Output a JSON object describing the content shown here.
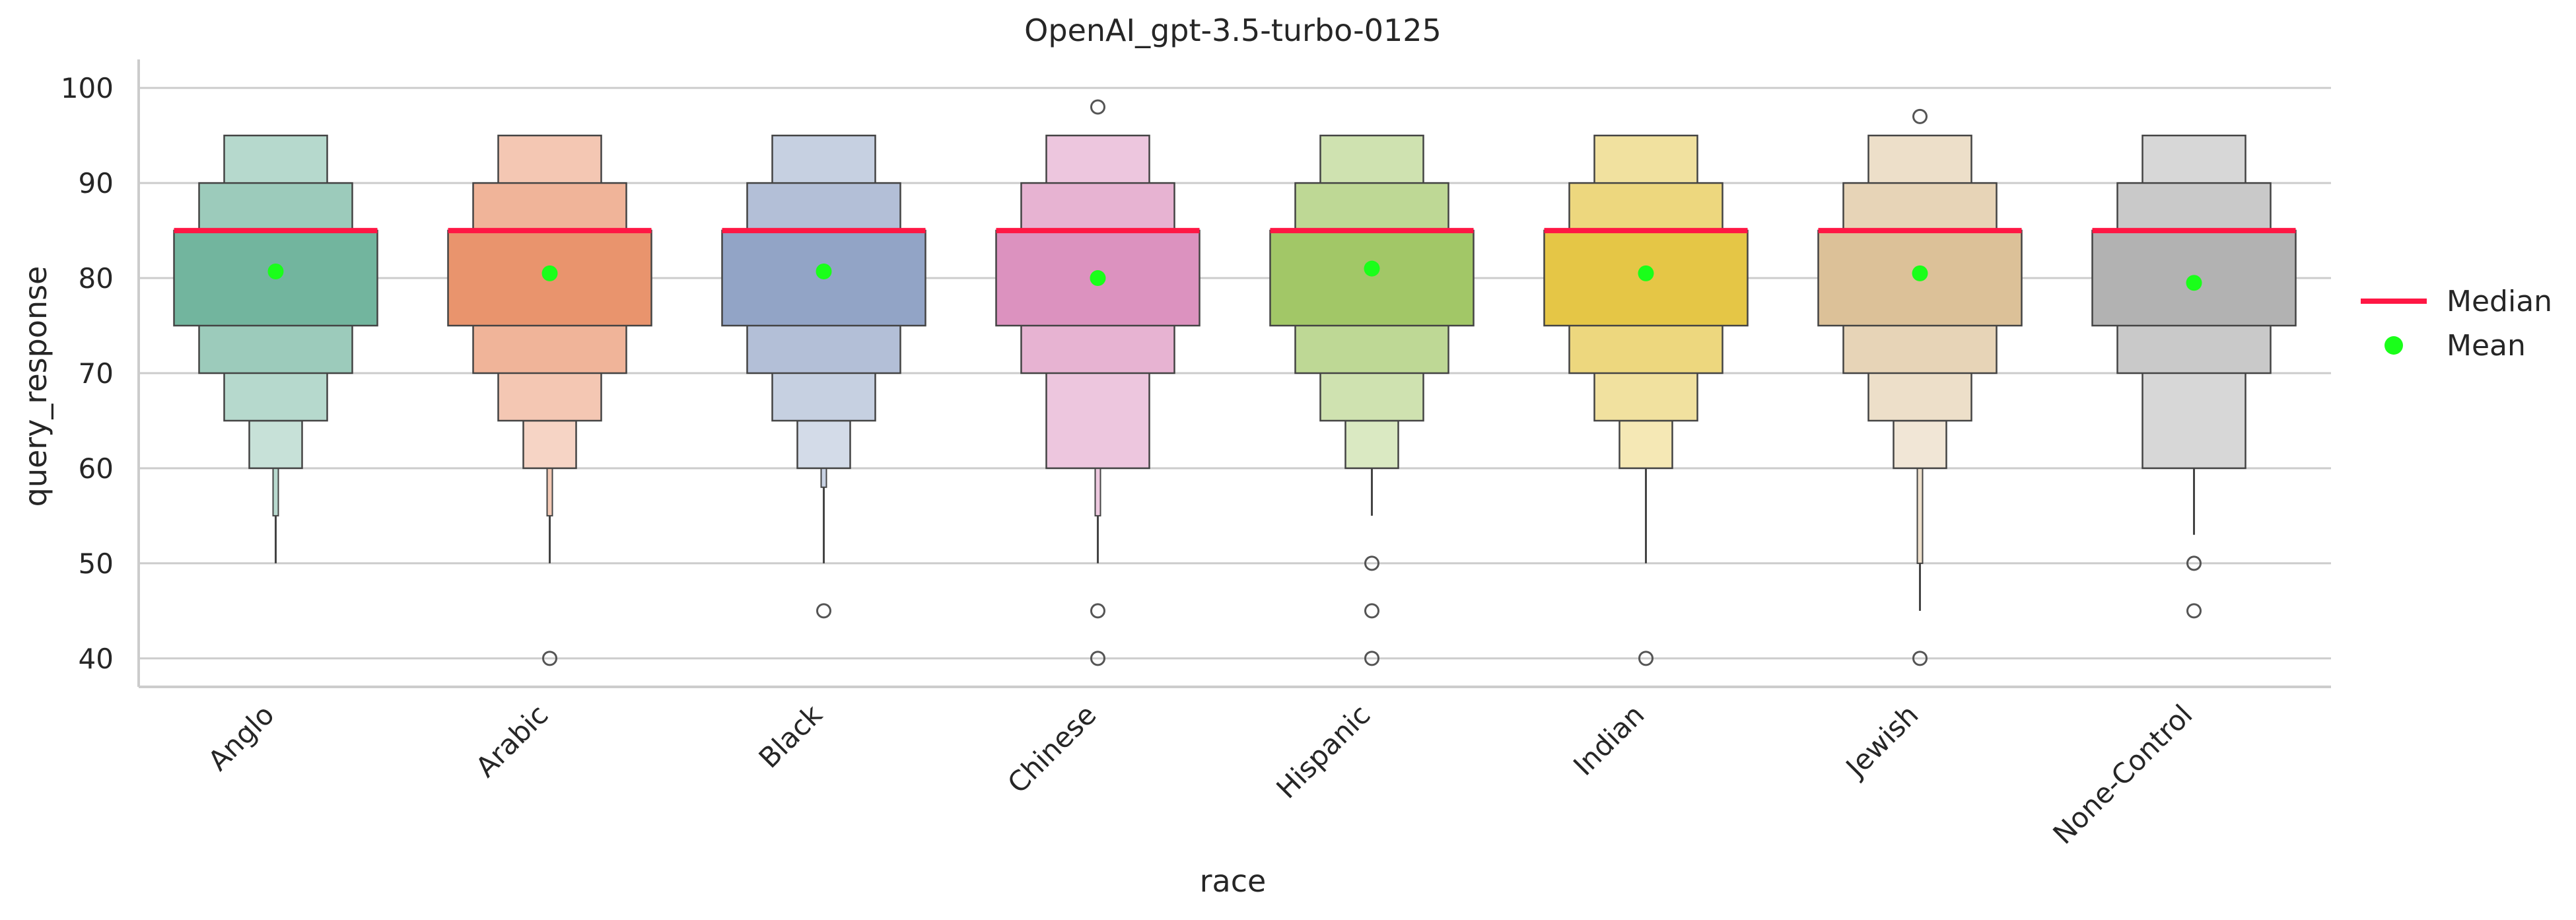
{
  "chart_data": {
    "type": "boxen",
    "title": "OpenAI_gpt-3.5-turbo-0125",
    "xlabel": "race",
    "ylabel": "query_response",
    "ylim": [
      37,
      103
    ],
    "yticks": [
      40,
      50,
      60,
      70,
      80,
      90,
      100
    ],
    "grid": "horizontal",
    "legend_position": "right",
    "legend": [
      {
        "label": "Median",
        "color": "#ff1744",
        "marker": "line"
      },
      {
        "label": "Mean",
        "color": "#1aff1a",
        "marker": "dot"
      }
    ],
    "categories": [
      "Anglo",
      "Arabic",
      "Black",
      "Chinese",
      "Hispanic",
      "Indian",
      "Jewish",
      "None-Control"
    ],
    "colors": [
      "#72b59e",
      "#e9946d",
      "#92a4c6",
      "#dc92bf",
      "#a2c767",
      "#e5c646",
      "#dcc198",
      "#b2b2b2"
    ],
    "series": [
      {
        "name": "Anglo",
        "median": 85,
        "mean": 80.7,
        "boxes": [
          [
            75,
            85
          ],
          [
            70,
            90
          ],
          [
            65,
            95
          ],
          [
            60,
            65
          ]
        ],
        "tail": [
          50,
          60
        ],
        "thin_box": [
          55,
          60
        ],
        "outliers": []
      },
      {
        "name": "Arabic",
        "median": 85,
        "mean": 80.5,
        "boxes": [
          [
            75,
            85
          ],
          [
            70,
            90
          ],
          [
            65,
            95
          ],
          [
            60,
            65
          ]
        ],
        "tail": [
          50,
          60
        ],
        "thin_box": [
          55,
          60
        ],
        "outliers": [
          40
        ]
      },
      {
        "name": "Black",
        "median": 85,
        "mean": 80.7,
        "boxes": [
          [
            75,
            85
          ],
          [
            70,
            90
          ],
          [
            65,
            95
          ],
          [
            60,
            65
          ]
        ],
        "tail": [
          50,
          60
        ],
        "thin_box": [
          58,
          60
        ],
        "outliers": [
          45
        ]
      },
      {
        "name": "Chinese",
        "median": 85,
        "mean": 80,
        "boxes": [
          [
            75,
            85
          ],
          [
            70,
            90
          ],
          [
            60,
            95
          ]
        ],
        "tail": [
          50,
          60
        ],
        "thin_box": [
          55,
          60
        ],
        "outliers": [
          98,
          45,
          40
        ]
      },
      {
        "name": "Hispanic",
        "median": 85,
        "mean": 81,
        "boxes": [
          [
            75,
            85
          ],
          [
            70,
            90
          ],
          [
            65,
            95
          ],
          [
            60,
            65
          ]
        ],
        "tail": [
          55,
          60
        ],
        "thin_box": null,
        "outliers": [
          50,
          45,
          40
        ]
      },
      {
        "name": "Indian",
        "median": 85,
        "mean": 80.5,
        "boxes": [
          [
            75,
            85
          ],
          [
            70,
            90
          ],
          [
            65,
            95
          ],
          [
            60,
            65
          ]
        ],
        "tail": [
          50,
          60
        ],
        "thin_box": null,
        "outliers": [
          40
        ]
      },
      {
        "name": "Jewish",
        "median": 85,
        "mean": 80.5,
        "boxes": [
          [
            75,
            85
          ],
          [
            70,
            90
          ],
          [
            65,
            95
          ],
          [
            60,
            65
          ]
        ],
        "tail": [
          45,
          60
        ],
        "thin_box": [
          50,
          60
        ],
        "outliers": [
          97,
          40
        ]
      },
      {
        "name": "None-Control",
        "median": 85,
        "mean": 79.5,
        "boxes": [
          [
            75,
            85
          ],
          [
            70,
            90
          ],
          [
            60,
            95
          ]
        ],
        "tail": [
          53,
          60
        ],
        "thin_box": null,
        "outliers": [
          50,
          45
        ]
      }
    ]
  }
}
